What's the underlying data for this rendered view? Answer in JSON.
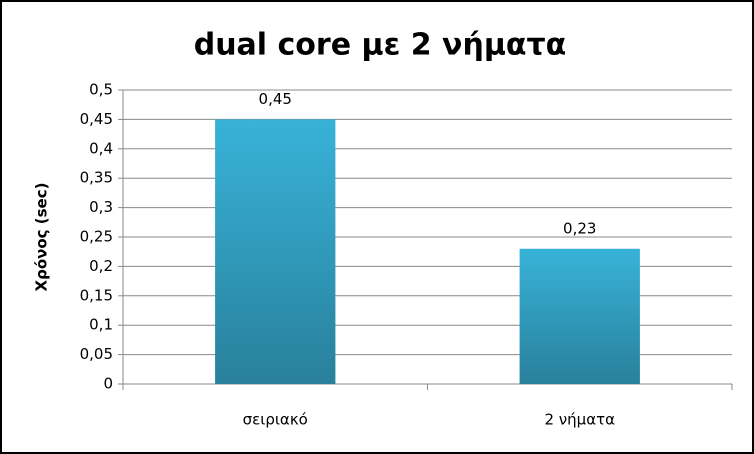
{
  "chart_data": {
    "type": "bar",
    "title": "dual core με 2 νήματα",
    "y_label": "Χρόνος (sec)",
    "categories": [
      "σειριακό",
      "2 νήματα"
    ],
    "values": [
      0.45,
      0.23
    ],
    "value_labels": [
      "0,45",
      "0,23"
    ],
    "color": "#38b2d8",
    "ylim": [
      0,
      0.5
    ],
    "yticks": [
      0,
      {
        "value": 0.05,
        "label": "0,05"
      },
      {
        "value": 0.1,
        "label": "0,1"
      },
      {
        "value": 0.15,
        "label": "0,15"
      },
      {
        "value": 0.2,
        "label": "0,2"
      },
      {
        "value": 0.25,
        "label": "0,25"
      },
      {
        "value": 0.3,
        "label": "0,3"
      },
      {
        "value": 0.35,
        "label": "0,35"
      },
      {
        "value": 0.4,
        "label": "0,4"
      },
      {
        "value": 0.45,
        "label": "0,45"
      },
      {
        "value": 0.5,
        "label": "0,5"
      }
    ],
    "grid": true
  }
}
